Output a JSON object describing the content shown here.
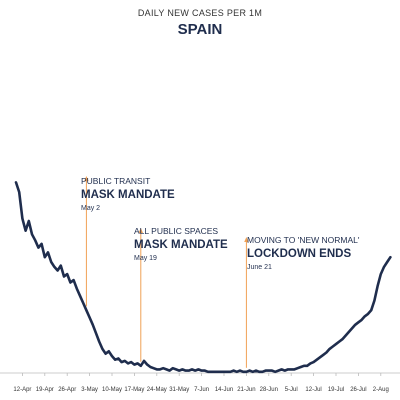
{
  "header": {
    "subtitle": "DAILY NEW CASES PER 1M",
    "title": "SPAIN"
  },
  "colors": {
    "line": "#1f2d4d",
    "annotation": "#f0a155",
    "axis": "#bbbbbb",
    "tick_text": "#333333"
  },
  "annotations": [
    {
      "line1": "PUBLIC TRANSIT",
      "line2": "MASK MANDATE",
      "date": "May 2"
    },
    {
      "line1": "ALL PUBLIC SPACES",
      "line2": "MASK MANDATE",
      "date": "May 19"
    },
    {
      "line1": "MOVING TO 'NEW NORMAL'",
      "line2": "LOCKDOWN ENDS",
      "date": "June 21"
    }
  ],
  "chart_data": {
    "type": "line",
    "title": "SPAIN",
    "subtitle": "DAILY NEW CASES PER 1M",
    "xlabel": "",
    "ylabel": "",
    "x_start": "2020-04-05",
    "x_end": "2020-08-08",
    "ylim": [
      0,
      160
    ],
    "grid": false,
    "legend": "none",
    "x_ticks": [
      "12-Apr",
      "19-Apr",
      "26-Apr",
      "3-May",
      "10-May",
      "17-May",
      "24-May",
      "31-May",
      "7-Jun",
      "14-Jun",
      "21-Jun",
      "28-Jun",
      "5-Jul",
      "12-Jul",
      "19-Jul",
      "26-Jul",
      "2-Aug"
    ],
    "annotation_dates": [
      "2020-05-02",
      "2020-05-19",
      "2020-06-21"
    ],
    "series": [
      {
        "values": [
          [
            5,
            158
          ],
          [
            6,
            150
          ],
          [
            7,
            128
          ],
          [
            8,
            118
          ],
          [
            9,
            126
          ],
          [
            10,
            115
          ],
          [
            11,
            110
          ],
          [
            12,
            104
          ],
          [
            13,
            107
          ],
          [
            14,
            96
          ],
          [
            15,
            100
          ],
          [
            16,
            92
          ],
          [
            17,
            88
          ],
          [
            18,
            85
          ],
          [
            19,
            89
          ],
          [
            20,
            80
          ],
          [
            21,
            82
          ],
          [
            22,
            75
          ],
          [
            23,
            77
          ],
          [
            24,
            70
          ],
          [
            25,
            64
          ],
          [
            26,
            58
          ],
          [
            27,
            52
          ],
          [
            28,
            46
          ],
          [
            29,
            40
          ],
          [
            30,
            33
          ],
          [
            31,
            26
          ],
          [
            32,
            20
          ],
          [
            33,
            16
          ],
          [
            34,
            18
          ],
          [
            35,
            14
          ],
          [
            36,
            11
          ],
          [
            37,
            12
          ],
          [
            38,
            9
          ],
          [
            39,
            10
          ],
          [
            40,
            8
          ],
          [
            41,
            9
          ],
          [
            42,
            7
          ],
          [
            43,
            8
          ],
          [
            44,
            6
          ],
          [
            45,
            10
          ],
          [
            46,
            7
          ],
          [
            47,
            5
          ],
          [
            48,
            4
          ],
          [
            49,
            3
          ],
          [
            50,
            3
          ],
          [
            51,
            4
          ],
          [
            52,
            3
          ],
          [
            53,
            2
          ],
          [
            54,
            4
          ],
          [
            55,
            3
          ],
          [
            56,
            2
          ],
          [
            57,
            3
          ],
          [
            58,
            2
          ],
          [
            59,
            2
          ],
          [
            60,
            3
          ],
          [
            61,
            2
          ],
          [
            62,
            3
          ],
          [
            63,
            2
          ],
          [
            64,
            2
          ],
          [
            65,
            1
          ],
          [
            66,
            1
          ],
          [
            67,
            1
          ],
          [
            68,
            1
          ],
          [
            69,
            1
          ],
          [
            70,
            1
          ],
          [
            71,
            1
          ],
          [
            72,
            1
          ],
          [
            73,
            2
          ],
          [
            74,
            1
          ],
          [
            75,
            2
          ],
          [
            76,
            1
          ],
          [
            77,
            1
          ],
          [
            78,
            2
          ],
          [
            79,
            1
          ],
          [
            80,
            2
          ],
          [
            81,
            1
          ],
          [
            82,
            1
          ],
          [
            83,
            2
          ],
          [
            84,
            2
          ],
          [
            85,
            2
          ],
          [
            86,
            1
          ],
          [
            87,
            2
          ],
          [
            88,
            3
          ],
          [
            89,
            2
          ],
          [
            90,
            3
          ],
          [
            91,
            3
          ],
          [
            92,
            3
          ],
          [
            93,
            4
          ],
          [
            94,
            5
          ],
          [
            95,
            6
          ],
          [
            96,
            6
          ],
          [
            97,
            8
          ],
          [
            98,
            9
          ],
          [
            99,
            11
          ],
          [
            100,
            13
          ],
          [
            101,
            15
          ],
          [
            102,
            17
          ],
          [
            103,
            20
          ],
          [
            104,
            22
          ],
          [
            105,
            24
          ],
          [
            106,
            26
          ],
          [
            107,
            28
          ],
          [
            108,
            31
          ],
          [
            109,
            34
          ],
          [
            110,
            37
          ],
          [
            111,
            40
          ],
          [
            112,
            42
          ],
          [
            113,
            44
          ],
          [
            114,
            47
          ],
          [
            115,
            49
          ],
          [
            116,
            52
          ],
          [
            117,
            60
          ],
          [
            118,
            72
          ],
          [
            119,
            82
          ],
          [
            120,
            88
          ],
          [
            121,
            92
          ],
          [
            122,
            96
          ]
        ]
      }
    ]
  }
}
